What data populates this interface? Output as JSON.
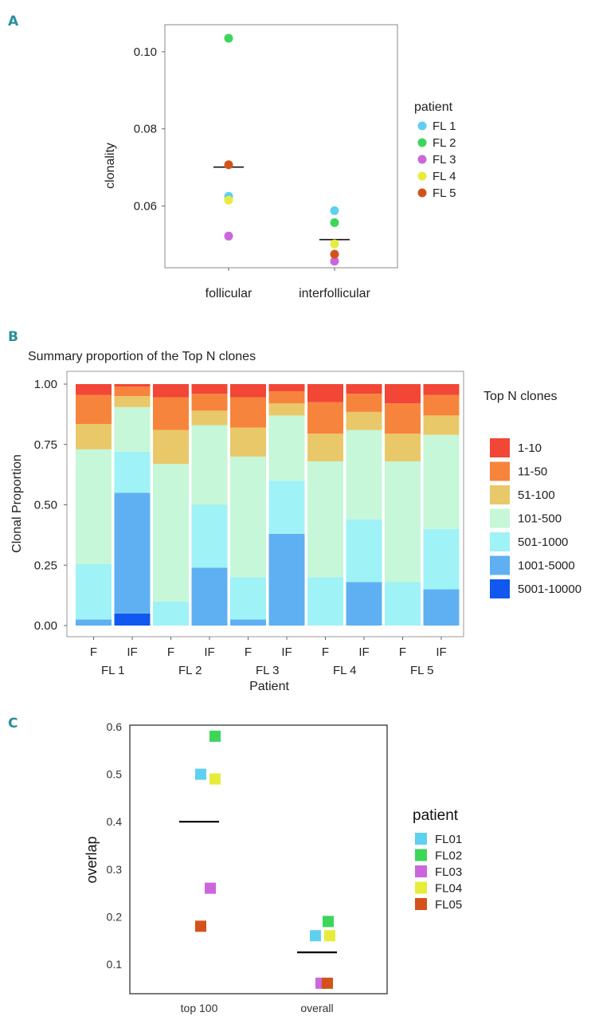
{
  "chart_data": [
    {
      "panel": "A",
      "type": "scatter",
      "title": "",
      "ylabel": "clonality",
      "xlabel": "",
      "categories": [
        "follicular",
        "interfollicular"
      ],
      "yticks": [
        "0.06",
        "0.08",
        "0.10"
      ],
      "ylim": [
        0.044,
        0.107
      ],
      "legend_title": "patient",
      "series": [
        {
          "name": "FL 1",
          "color": "#5fd0ef",
          "values": [
            0.0625,
            0.0588
          ]
        },
        {
          "name": "FL 2",
          "color": "#3cd65a",
          "values": [
            0.1035,
            0.0557
          ]
        },
        {
          "name": "FL 3",
          "color": "#cc66dd",
          "values": [
            0.0522,
            0.0457
          ]
        },
        {
          "name": "FL 4",
          "color": "#e6ec3c",
          "values": [
            0.0615,
            0.0502
          ]
        },
        {
          "name": "FL 5",
          "color": "#d4521a",
          "values": [
            0.0707,
            0.0475
          ]
        }
      ],
      "median": [
        0.0701,
        0.0513
      ]
    },
    {
      "panel": "B",
      "type": "bar",
      "stacked": true,
      "title": "Summary proportion of the Top N clones",
      "ylabel": "Clonal Proportion",
      "xlabel": "Patient",
      "categories": [
        "F",
        "IF",
        "F",
        "IF",
        "F",
        "IF",
        "F",
        "IF",
        "F",
        "IF"
      ],
      "groups": [
        "FL 1",
        "FL 2",
        "FL 3",
        "FL 4",
        "FL 5"
      ],
      "yticks": [
        "0.00",
        "0.25",
        "0.50",
        "0.75",
        "1.00"
      ],
      "ylim": [
        0,
        1
      ],
      "legend_title": "Top N clones",
      "series": [
        {
          "name": "5001-10000",
          "color": "#1058ef",
          "values": [
            0,
            0.05,
            0,
            0,
            0,
            0,
            0,
            0,
            0,
            0
          ]
        },
        {
          "name": "1001-5000",
          "color": "#5fb0f2",
          "values": [
            0.025,
            0.5,
            0,
            0.24,
            0.025,
            0.38,
            0,
            0.18,
            0,
            0.15
          ]
        },
        {
          "name": "501-1000",
          "color": "#9ff2f6",
          "values": [
            0.23,
            0.17,
            0.1,
            0.26,
            0.175,
            0.22,
            0.2,
            0.26,
            0.18,
            0.25
          ]
        },
        {
          "name": "101-500",
          "color": "#c6f7d8",
          "values": [
            0.475,
            0.185,
            0.57,
            0.33,
            0.5,
            0.27,
            0.48,
            0.37,
            0.5,
            0.39
          ]
        },
        {
          "name": "51-100",
          "color": "#e8c868",
          "values": [
            0.105,
            0.045,
            0.14,
            0.06,
            0.12,
            0.05,
            0.115,
            0.075,
            0.115,
            0.08
          ]
        },
        {
          "name": "11-50",
          "color": "#f7843c",
          "values": [
            0.12,
            0.04,
            0.135,
            0.07,
            0.125,
            0.05,
            0.13,
            0.075,
            0.125,
            0.085
          ]
        },
        {
          "name": "1-10",
          "color": "#f24636",
          "values": [
            0.045,
            0.01,
            0.055,
            0.04,
            0.055,
            0.03,
            0.075,
            0.04,
            0.08,
            0.045
          ]
        }
      ]
    },
    {
      "panel": "C",
      "type": "scatter",
      "title": "",
      "ylabel": "overlap",
      "xlabel": "",
      "categories": [
        "top 100",
        "overall"
      ],
      "yticks": [
        "0.1",
        "0.2",
        "0.3",
        "0.4",
        "0.5",
        "0.6"
      ],
      "ylim": [
        0.035,
        0.616
      ],
      "legend_title": "patient",
      "series": [
        {
          "name": "FL01",
          "color": "#5fd0ef",
          "values": [
            0.5,
            0.16
          ]
        },
        {
          "name": "FL02",
          "color": "#3cd65a",
          "values": [
            0.58,
            0.19
          ]
        },
        {
          "name": "FL03",
          "color": "#cc66dd",
          "values": [
            0.26,
            0.06
          ]
        },
        {
          "name": "FL04",
          "color": "#e6ec3c",
          "values": [
            0.49,
            0.16
          ]
        },
        {
          "name": "FL05",
          "color": "#d4521a",
          "values": [
            0.18,
            0.06
          ]
        }
      ],
      "median": [
        0.4,
        0.125
      ]
    }
  ],
  "panel_labels": {
    "a": "A",
    "b": "B",
    "c": "C"
  }
}
